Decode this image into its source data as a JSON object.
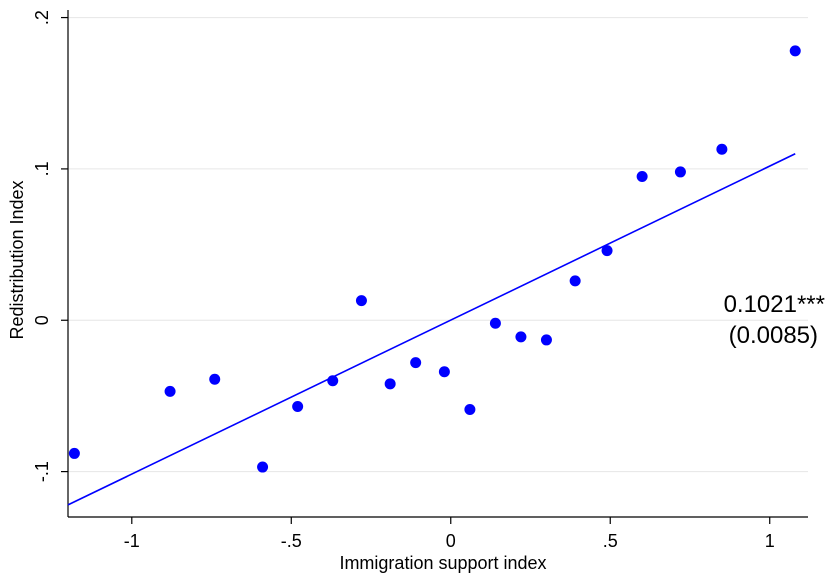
{
  "chart_data": {
    "type": "scatter",
    "xlabel": "Immigration support index",
    "ylabel": "Redistribution Index",
    "xlim": [
      -1.2,
      1.12
    ],
    "ylim": [
      -0.13,
      0.205
    ],
    "x_ticks": [
      {
        "value": -1,
        "label": "-1"
      },
      {
        "value": -0.5,
        "label": "-.5"
      },
      {
        "value": 0,
        "label": "0"
      },
      {
        "value": 0.5,
        "label": ".5"
      },
      {
        "value": 1,
        "label": "1"
      }
    ],
    "y_ticks": [
      {
        "value": -0.1,
        "label": "-.1"
      },
      {
        "value": 0,
        "label": "0"
      },
      {
        "value": 0.1,
        "label": ".1"
      },
      {
        "value": 0.2,
        "label": ".2"
      }
    ],
    "grid": "horizontal",
    "marker_color": "#0000ff",
    "line_color": "#0000ff",
    "points": [
      {
        "x": -1.18,
        "y": -0.088
      },
      {
        "x": -0.88,
        "y": -0.047
      },
      {
        "x": -0.74,
        "y": -0.039
      },
      {
        "x": -0.59,
        "y": -0.097
      },
      {
        "x": -0.48,
        "y": -0.057
      },
      {
        "x": -0.37,
        "y": -0.04
      },
      {
        "x": -0.28,
        "y": 0.013
      },
      {
        "x": -0.19,
        "y": -0.042
      },
      {
        "x": -0.11,
        "y": -0.028
      },
      {
        "x": -0.02,
        "y": -0.034
      },
      {
        "x": 0.06,
        "y": -0.059
      },
      {
        "x": 0.14,
        "y": -0.002
      },
      {
        "x": 0.22,
        "y": -0.011
      },
      {
        "x": 0.3,
        "y": -0.013
      },
      {
        "x": 0.39,
        "y": 0.026
      },
      {
        "x": 0.49,
        "y": 0.046
      },
      {
        "x": 0.6,
        "y": 0.095
      },
      {
        "x": 0.72,
        "y": 0.098
      },
      {
        "x": 0.85,
        "y": 0.113
      },
      {
        "x": 1.08,
        "y": 0.178
      }
    ],
    "fit_line": {
      "x": [
        -1.2,
        1.08
      ],
      "y": [
        -0.122,
        0.11
      ]
    },
    "annotation": {
      "coefficient": "0.1021***",
      "std_error": "(0.0085)"
    }
  }
}
